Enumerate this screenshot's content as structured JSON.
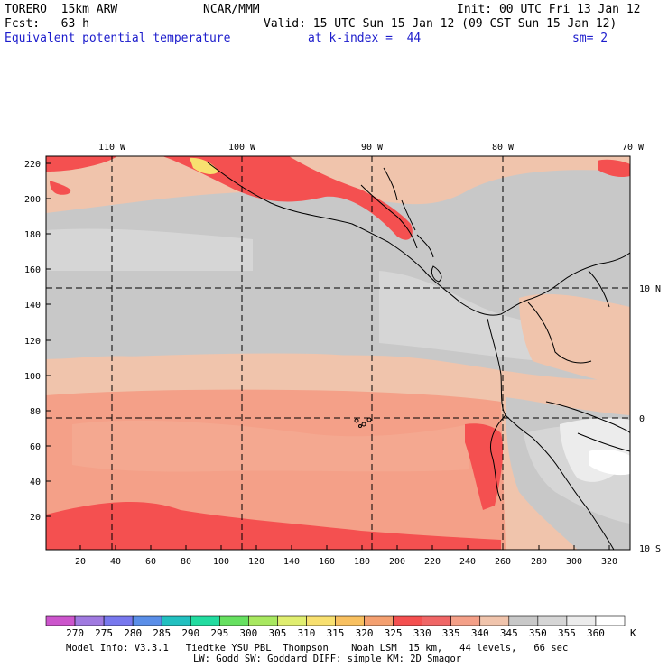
{
  "header": {
    "model": "TORERO  15km ARW",
    "org": "NCAR/MMM",
    "init": "Init: 00 UTC Fri 13 Jan 12",
    "fcst": "Fcst:   63 h",
    "valid": "Valid: 15 UTC Sun 15 Jan 12 (09 CST Sun 15 Jan 12)",
    "field": "Equivalent potential temperature",
    "level": "at k-index =  44",
    "smooth": "sm= 2"
  },
  "map": {
    "lon_labels": [
      "110 W",
      "100 W",
      "90 W",
      "80 W",
      "70 W"
    ],
    "lat_labels": [
      "10 N",
      "0",
      "10 S"
    ],
    "y_ticks": [
      "220",
      "200",
      "180",
      "160",
      "140",
      "120",
      "100",
      "80",
      "60",
      "40",
      "20"
    ],
    "x_ticks": [
      "20",
      "40",
      "60",
      "80",
      "100",
      "120",
      "140",
      "160",
      "180",
      "200",
      "220",
      "240",
      "260",
      "280",
      "300",
      "320"
    ]
  },
  "colorbar": {
    "labels": [
      "270",
      "275",
      "280",
      "285",
      "290",
      "295",
      "300",
      "305",
      "310",
      "315",
      "320",
      "325",
      "330",
      "335",
      "340",
      "345",
      "350",
      "355",
      "360"
    ],
    "unit": "K",
    "colors": [
      "#cc55cc",
      "#a07ae0",
      "#7878ee",
      "#5a8ee8",
      "#22c0c0",
      "#22dca0",
      "#66e060",
      "#a8e860",
      "#e0ee70",
      "#f8e070",
      "#f8c060",
      "#f4a070",
      "#f45050",
      "#f06666",
      "#f4a088",
      "#f0c4ac",
      "#c8c8c8",
      "#d6d6d6",
      "#ececec",
      "#ffffff"
    ]
  },
  "footer": {
    "line1": "Model Info: V3.3.1   Tiedtke YSU PBL  Thompson    Noah LSM  15 km,   44 levels,   66 sec",
    "line2": "LW: Godd SW: Goddard DIFF: simple KM: 2D Smagor"
  }
}
